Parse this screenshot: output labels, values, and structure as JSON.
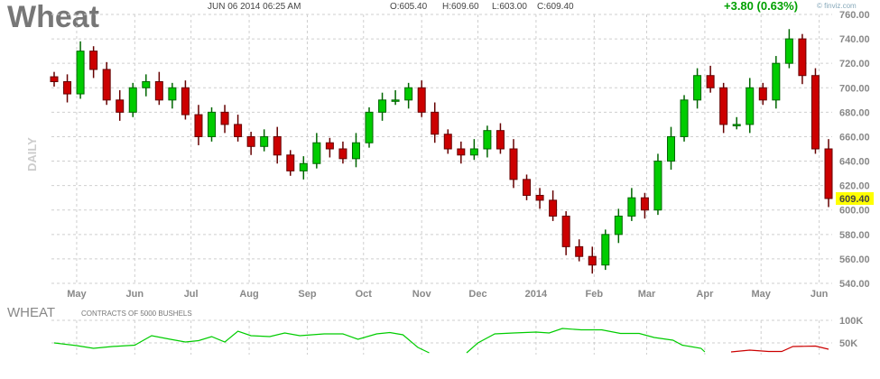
{
  "header": {
    "title": "Wheat",
    "datetime": "JUN 06 2014 06:25 AM",
    "open": "O:605.40",
    "high": "H:609.60",
    "low": "L:603.00",
    "close": "C:609.40",
    "change": "+3.80 (0.63%)",
    "brand": "© finviz.com",
    "timeframe": "DAILY"
  },
  "colors": {
    "up": "#00cc00",
    "down": "#cc0000",
    "last_price_bg": "#ffff00",
    "change": "#00a000"
  },
  "chart_data": [
    {
      "type": "candlestick",
      "title": "Wheat",
      "ylim": [
        540,
        760
      ],
      "y_ticks": [
        "760.00",
        "740.00",
        "720.00",
        "700.00",
        "680.00",
        "660.00",
        "640.00",
        "620.00",
        "600.00",
        "580.00",
        "560.00",
        "540.00"
      ],
      "last_price_label": "609.40",
      "grid": true,
      "x_tick_labels": [
        {
          "date": "2013-05-01",
          "label": "May"
        },
        {
          "date": "2013-06-01",
          "label": "Jun"
        },
        {
          "date": "2013-07-01",
          "label": "Jul"
        },
        {
          "date": "2013-08-01",
          "label": "Aug"
        },
        {
          "date": "2013-09-01",
          "label": "Sep"
        },
        {
          "date": "2013-10-01",
          "label": "Oct"
        },
        {
          "date": "2013-11-01",
          "label": "Nov"
        },
        {
          "date": "2013-12-01",
          "label": "Dec"
        },
        {
          "date": "2014-01-01",
          "label": "2014"
        },
        {
          "date": "2014-02-01",
          "label": "Feb"
        },
        {
          "date": "2014-03-01",
          "label": "Mar"
        },
        {
          "date": "2014-04-01",
          "label": "Apr"
        },
        {
          "date": "2014-05-01",
          "label": "May"
        },
        {
          "date": "2014-06-01",
          "label": "Jun"
        }
      ],
      "x_range": [
        "2013-04-19",
        "2014-06-06"
      ],
      "dates": [
        "2013-04-19",
        "2013-04-26",
        "2013-05-03",
        "2013-05-10",
        "2013-05-17",
        "2013-05-24",
        "2013-05-31",
        "2013-06-07",
        "2013-06-14",
        "2013-06-21",
        "2013-06-28",
        "2013-07-05",
        "2013-07-12",
        "2013-07-19",
        "2013-07-26",
        "2013-08-02",
        "2013-08-09",
        "2013-08-16",
        "2013-08-23",
        "2013-08-30",
        "2013-09-06",
        "2013-09-13",
        "2013-09-20",
        "2013-09-27",
        "2013-10-04",
        "2013-10-11",
        "2013-10-18",
        "2013-10-25",
        "2013-11-01",
        "2013-11-08",
        "2013-11-15",
        "2013-11-22",
        "2013-11-29",
        "2013-12-06",
        "2013-12-13",
        "2013-12-20",
        "2013-12-27",
        "2014-01-03",
        "2014-01-10",
        "2014-01-17",
        "2014-01-24",
        "2014-01-31",
        "2014-02-07",
        "2014-02-14",
        "2014-02-21",
        "2014-02-28",
        "2014-03-07",
        "2014-03-14",
        "2014-03-21",
        "2014-03-28",
        "2014-04-04",
        "2014-04-11",
        "2014-04-18",
        "2014-04-25",
        "2014-05-02",
        "2014-05-09",
        "2014-05-16",
        "2014-05-23",
        "2014-05-30",
        "2014-06-06"
      ],
      "close": [
        705,
        695,
        730,
        715,
        690,
        680,
        700,
        705,
        690,
        700,
        678,
        660,
        680,
        670,
        660,
        652,
        660,
        645,
        632,
        638,
        655,
        650,
        642,
        655,
        680,
        690,
        690,
        700,
        680,
        662,
        650,
        645,
        650,
        665,
        650,
        625,
        612,
        608,
        595,
        570,
        562,
        555,
        580,
        595,
        610,
        600,
        640,
        660,
        690,
        710,
        700,
        670,
        670,
        700,
        690,
        720,
        740,
        710,
        650,
        609.4
      ]
    },
    {
      "type": "line",
      "title": "WHEAT",
      "subtitle": "CONTRACTS OF 5000 BUSHELS",
      "y_ticks": [
        "100K",
        "50K"
      ],
      "ylim": [
        25,
        110
      ],
      "x_range": [
        "2013-04-19",
        "2014-06-06"
      ],
      "series": [
        {
          "color": "#00cc00",
          "points": [
            [
              "2013-04-19",
              50
            ],
            [
              "2013-05-01",
              44
            ],
            [
              "2013-05-10",
              38
            ],
            [
              "2013-05-20",
              42
            ],
            [
              "2013-06-01",
              45
            ],
            [
              "2013-06-10",
              66
            ],
            [
              "2013-06-20",
              58
            ],
            [
              "2013-06-28",
              52
            ],
            [
              "2013-07-05",
              55
            ],
            [
              "2013-07-12",
              64
            ],
            [
              "2013-07-19",
              52
            ],
            [
              "2013-07-26",
              76
            ],
            [
              "2013-08-02",
              66
            ],
            [
              "2013-08-12",
              64
            ],
            [
              "2013-08-20",
              72
            ],
            [
              "2013-08-28",
              66
            ],
            [
              "2013-09-10",
              70
            ],
            [
              "2013-09-20",
              70
            ],
            [
              "2013-09-28",
              58
            ],
            [
              "2013-10-08",
              70
            ],
            [
              "2013-10-15",
              73
            ],
            [
              "2013-10-22",
              68
            ],
            [
              "2013-10-30",
              40
            ],
            [
              "2013-11-05",
              28
            ]
          ]
        },
        {
          "color": "#00cc00",
          "points": [
            [
              "2013-11-25",
              28
            ],
            [
              "2013-12-01",
              50
            ],
            [
              "2013-12-10",
              70
            ],
            [
              "2013-12-20",
              72
            ],
            [
              "2014-01-01",
              74
            ],
            [
              "2014-01-08",
              72
            ],
            [
              "2014-01-15",
              82
            ],
            [
              "2014-01-25",
              79
            ],
            [
              "2014-02-05",
              79
            ],
            [
              "2014-02-15",
              71
            ],
            [
              "2014-02-25",
              71
            ],
            [
              "2014-03-05",
              62
            ],
            [
              "2014-03-15",
              56
            ],
            [
              "2014-03-20",
              45
            ],
            [
              "2014-03-30",
              38
            ],
            [
              "2014-04-01",
              30
            ]
          ]
        },
        {
          "color": "#cc0000",
          "points": [
            [
              "2014-04-15",
              30
            ],
            [
              "2014-04-25",
              34
            ],
            [
              "2014-05-05",
              31
            ],
            [
              "2014-05-12",
              31
            ],
            [
              "2014-05-18",
              42
            ],
            [
              "2014-05-30",
              43
            ],
            [
              "2014-06-06",
              36
            ]
          ]
        }
      ]
    }
  ]
}
